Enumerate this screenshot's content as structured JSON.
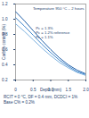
{
  "chart_data": {
    "type": "line",
    "title": "Temperature 950 °C – 2 hours",
    "x_label": "Depth (mm)",
    "y_label": "Carbon content (%)",
    "x": [
      0,
      0.25,
      0.5,
      0.75,
      1.0,
      1.25,
      1.5,
      1.75,
      2.0
    ],
    "series": [
      {
        "name": "Pc = 1.3%",
        "color": "#1f5fa8",
        "values": [
          1.1,
          0.98,
          0.85,
          0.72,
          0.6,
          0.49,
          0.4,
          0.33,
          0.28
        ]
      },
      {
        "name": "Pc = 1.2% reference",
        "color": "#3f86cc",
        "values": [
          1.02,
          0.91,
          0.79,
          0.67,
          0.56,
          0.46,
          0.38,
          0.31,
          0.27
        ]
      },
      {
        "name": "Pc = 1.1%",
        "color": "#7fb3e0",
        "values": [
          0.94,
          0.84,
          0.73,
          0.62,
          0.52,
          0.43,
          0.36,
          0.3,
          0.26
        ]
      }
    ],
    "xlim": [
      0,
      2.0
    ],
    "xticks": [
      0,
      0.5,
      {
        "value": 1.0,
        "label": "1.0"
      },
      1.5,
      {
        "value": 2.0,
        "label": "2.0"
      }
    ],
    "ylim": [
      0.2,
      1.2
    ],
    "yticks": [
      0.2,
      0.4,
      0.6,
      0.8,
      {
        "value": 1.0,
        "label": "1.0"
      },
      1.2
    ],
    "grid": false,
    "caption": [
      "RCIT = 0 °C, DF = 0.4 mm, DCDCI = 1%",
      "Base C% = 0.2%"
    ]
  }
}
